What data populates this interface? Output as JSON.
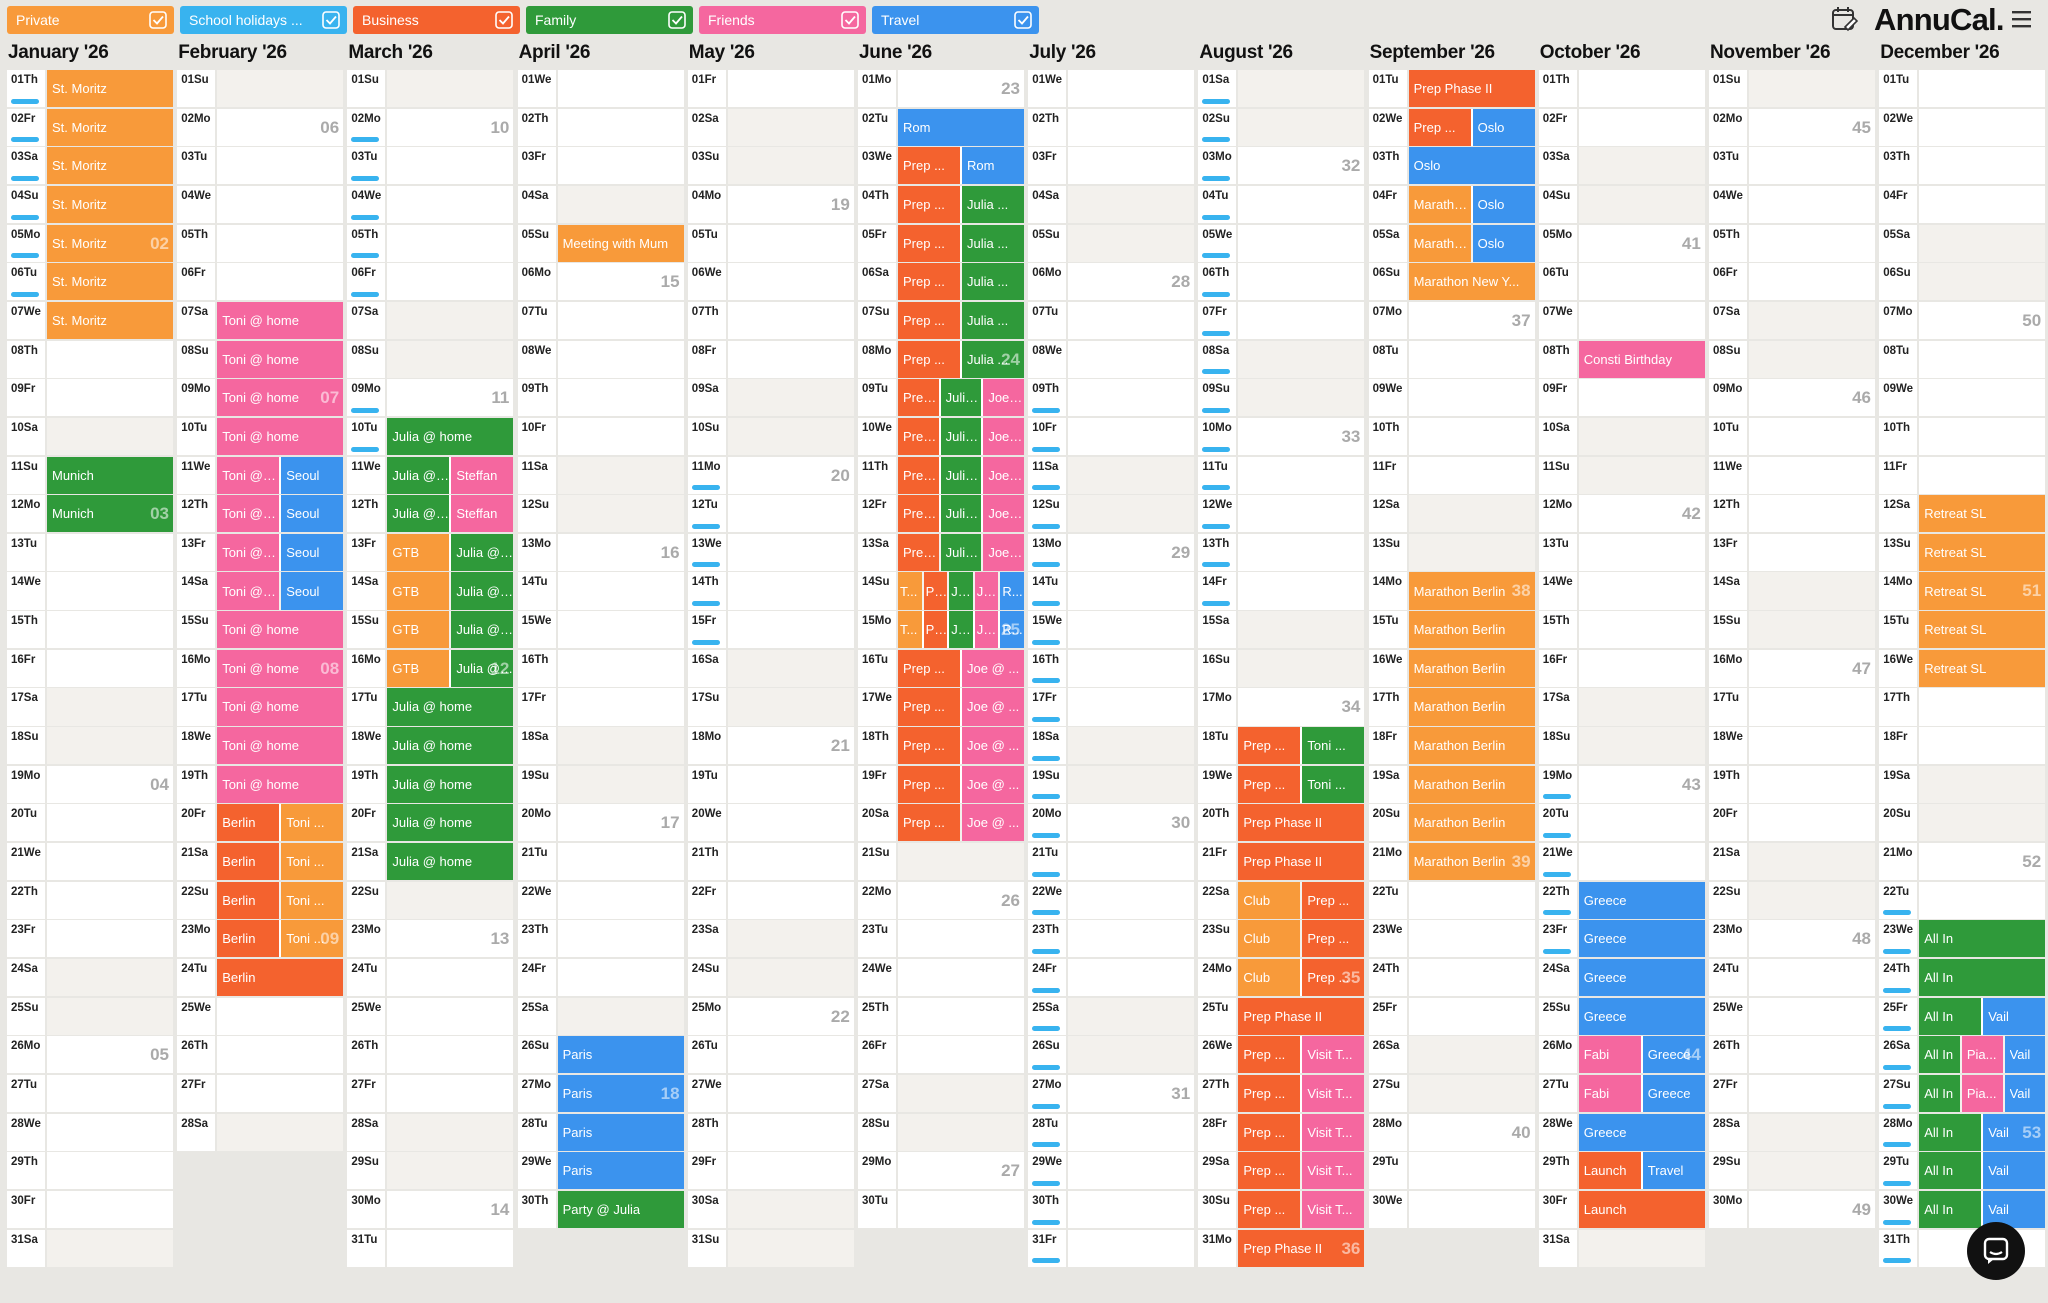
{
  "brand": "AnnuCal.",
  "filters": [
    {
      "label": "Private",
      "color": "#f89a3a"
    },
    {
      "label": "School holidays ...",
      "color": "#38b3ef"
    },
    {
      "label": "Business",
      "color": "#f4622e"
    },
    {
      "label": "Family",
      "color": "#2f9a3a"
    },
    {
      "label": "Friends",
      "color": "#f5679f"
    },
    {
      "label": "Travel",
      "color": "#3b93ee"
    }
  ],
  "months": [
    {
      "title": "January '26",
      "days": [
        "01Th",
        "02Fr",
        "03Sa",
        "04Su",
        "05Mo",
        "06Tu",
        "07We",
        "08Th",
        "09Fr",
        "10Sa",
        "11Su",
        "12Mo",
        "13Tu",
        "14We",
        "15Th",
        "16Fr",
        "17Sa",
        "18Su",
        "19Mo",
        "20Tu",
        "21We",
        "22Th",
        "23Fr",
        "24Sa",
        "25Su",
        "26Mo",
        "27Tu",
        "28We",
        "29Th",
        "30Fr",
        "31Sa"
      ],
      "weeks": [
        "02",
        "03",
        "04",
        "05"
      ],
      "school_holidays": [
        [
          1,
          6
        ]
      ],
      "events": [
        {
          "label": "St. Moritz",
          "filter": 0,
          "from": 1,
          "to": 7
        },
        {
          "label": "Munich",
          "filter": 3,
          "from": 11,
          "to": 12
        }
      ]
    },
    {
      "title": "February '26",
      "days": [
        "01Su",
        "02Mo",
        "03Tu",
        "04We",
        "05Th",
        "06Fr",
        "07Sa",
        "08Su",
        "09Mo",
        "10Tu",
        "11We",
        "12Th",
        "13Fr",
        "14Sa",
        "15Su",
        "16Mo",
        "17Tu",
        "18We",
        "19Th",
        "20Fr",
        "21Sa",
        "22Su",
        "23Mo",
        "24Tu",
        "25We",
        "26Th",
        "27Fr",
        "28Sa"
      ],
      "weeks": [
        "06",
        "07",
        "08",
        "09"
      ],
      "school_holidays": [],
      "events": [
        {
          "label": "Toni @ home",
          "filter": 4,
          "from": 7,
          "to": 19
        },
        {
          "label": "Seoul",
          "filter": 5,
          "from": 11,
          "to": 14
        },
        {
          "label": "Berlin",
          "filter": 2,
          "from": 20,
          "to": 24
        },
        {
          "label": "Toni ...",
          "filter": 0,
          "from": 20,
          "to": 23
        }
      ]
    },
    {
      "title": "March '26",
      "days": [
        "01Su",
        "02Mo",
        "03Tu",
        "04We",
        "05Th",
        "06Fr",
        "07Sa",
        "08Su",
        "09Mo",
        "10Tu",
        "11We",
        "12Th",
        "13Fr",
        "14Sa",
        "15Su",
        "16Mo",
        "17Tu",
        "18We",
        "19Th",
        "20Fr",
        "21Sa",
        "22Su",
        "23Mo",
        "24Tu",
        "25We",
        "26Th",
        "27Fr",
        "28Sa",
        "29Su",
        "30Mo",
        "31Tu"
      ],
      "weeks": [
        "10",
        "11",
        "12",
        "13",
        "14"
      ],
      "school_holidays": [
        [
          2,
          6
        ],
        [
          9,
          10
        ]
      ],
      "events": [
        {
          "label": "GTB",
          "filter": 0,
          "from": 13,
          "to": 16
        },
        {
          "label": "Julia @ home",
          "filter": 3,
          "from": 10,
          "to": 21
        },
        {
          "label": "Steffan",
          "filter": 4,
          "from": 11,
          "to": 12
        }
      ]
    },
    {
      "title": "April '26",
      "days": [
        "01We",
        "02Th",
        "03Fr",
        "04Sa",
        "05Su",
        "06Mo",
        "07Tu",
        "08We",
        "09Th",
        "10Fr",
        "11Sa",
        "12Su",
        "13Mo",
        "14Tu",
        "15We",
        "16Th",
        "17Fr",
        "18Sa",
        "19Su",
        "20Mo",
        "21Tu",
        "22We",
        "23Th",
        "24Fr",
        "25Sa",
        "26Su",
        "27Mo",
        "28Tu",
        "29We",
        "30Th"
      ],
      "weeks": [
        "15",
        "16",
        "17",
        "18"
      ],
      "school_holidays": [],
      "events": [
        {
          "label": "Meeting with Mum",
          "filter": 0,
          "from": 5,
          "to": 5
        },
        {
          "label": "Paris",
          "filter": 5,
          "from": 26,
          "to": 29
        },
        {
          "label": "Party @ Julia",
          "filter": 3,
          "from": 30,
          "to": 30
        }
      ]
    },
    {
      "title": "May '26",
      "days": [
        "01Fr",
        "02Sa",
        "03Su",
        "04Mo",
        "05Tu",
        "06We",
        "07Th",
        "08Fr",
        "09Sa",
        "10Su",
        "11Mo",
        "12Tu",
        "13We",
        "14Th",
        "15Fr",
        "16Sa",
        "17Su",
        "18Mo",
        "19Tu",
        "20We",
        "21Th",
        "22Fr",
        "23Sa",
        "24Su",
        "25Mo",
        "26Tu",
        "27We",
        "28Th",
        "29Fr",
        "30Sa",
        "31Su"
      ],
      "weeks": [
        "19",
        "20",
        "21",
        "22"
      ],
      "school_holidays": [
        [
          11,
          15
        ]
      ],
      "events": []
    },
    {
      "title": "June '26",
      "days": [
        "01Mo",
        "02Tu",
        "03We",
        "04Th",
        "05Fr",
        "06Sa",
        "07Su",
        "08Mo",
        "09Tu",
        "10We",
        "11Th",
        "12Fr",
        "13Sa",
        "14Su",
        "15Mo",
        "16Tu",
        "17We",
        "18Th",
        "19Fr",
        "20Sa",
        "21Su",
        "22Mo",
        "23Tu",
        "24We",
        "25Th",
        "26Fr",
        "27Sa",
        "28Su",
        "29Mo",
        "30Tu"
      ],
      "weeks": [
        "23",
        "24",
        "25",
        "26",
        "27"
      ],
      "school_holidays": [],
      "events": [
        {
          "label": "T...",
          "filter": 0,
          "from": 14,
          "to": 15
        },
        {
          "label": "Prep ...",
          "filter": 2,
          "from": 3,
          "to": 20
        },
        {
          "label": "Julia ...",
          "filter": 3,
          "from": 4,
          "to": 15
        },
        {
          "label": "Joe @ ...",
          "filter": 4,
          "from": 9,
          "to": 20
        },
        {
          "label": "R...",
          "filter": 5,
          "from": 14,
          "to": 15
        },
        {
          "label": "Rom",
          "filter": 5,
          "from": 2,
          "to": 3
        }
      ]
    },
    {
      "title": "July '26",
      "days": [
        "01We",
        "02Th",
        "03Fr",
        "04Sa",
        "05Su",
        "06Mo",
        "07Tu",
        "08We",
        "09Th",
        "10Fr",
        "11Sa",
        "12Su",
        "13Mo",
        "14Tu",
        "15We",
        "16Th",
        "17Fr",
        "18Sa",
        "19Su",
        "20Mo",
        "21Tu",
        "22We",
        "23Th",
        "24Fr",
        "25Sa",
        "26Su",
        "27Mo",
        "28Tu",
        "29We",
        "30Th",
        "31Fr"
      ],
      "weeks": [
        "28",
        "29",
        "30",
        "31"
      ],
      "school_holidays": [
        [
          9,
          31
        ]
      ],
      "events": []
    },
    {
      "title": "August '26",
      "days": [
        "01Sa",
        "02Su",
        "03Mo",
        "04Tu",
        "05We",
        "06Th",
        "07Fr",
        "08Sa",
        "09Su",
        "10Mo",
        "11Tu",
        "12We",
        "13Th",
        "14Fr",
        "15Sa",
        "16Su",
        "17Mo",
        "18Tu",
        "19We",
        "20Th",
        "21Fr",
        "22Sa",
        "23Su",
        "24Mo",
        "25Tu",
        "26We",
        "27Th",
        "28Fr",
        "29Sa",
        "30Su",
        "31Mo"
      ],
      "weeks": [
        "32",
        "33",
        "34",
        "35",
        "36"
      ],
      "school_holidays": [
        [
          1,
          14
        ]
      ],
      "events": [
        {
          "label": "Prep ...",
          "filter": 2,
          "from": 18,
          "to": 19
        },
        {
          "label": "Toni ...",
          "filter": 3,
          "from": 18,
          "to": 19
        },
        {
          "label": "Prep Phase II",
          "filter": 2,
          "from": 20,
          "to": 21
        },
        {
          "label": "Club",
          "filter": 0,
          "from": 22,
          "to": 24
        },
        {
          "label": "Prep ...",
          "filter": 2,
          "from": 22,
          "to": 24
        },
        {
          "label": "Prep Phase II",
          "filter": 2,
          "from": 25,
          "to": 25
        },
        {
          "label": "Prep ...",
          "filter": 2,
          "from": 26,
          "to": 30
        },
        {
          "label": "Visit T...",
          "filter": 4,
          "from": 26,
          "to": 30
        },
        {
          "label": "Prep Phase II",
          "filter": 2,
          "from": 31,
          "to": 31
        }
      ]
    },
    {
      "title": "September '26",
      "days": [
        "01Tu",
        "02We",
        "03Th",
        "04Fr",
        "05Sa",
        "06Su",
        "07Mo",
        "08Tu",
        "09We",
        "10Th",
        "11Fr",
        "12Sa",
        "13Su",
        "14Mo",
        "15Tu",
        "16We",
        "17Th",
        "18Fr",
        "19Sa",
        "20Su",
        "21Mo",
        "22Tu",
        "23We",
        "24Th",
        "25Fr",
        "26Sa",
        "27Su",
        "28Mo",
        "29Tu",
        "30We"
      ],
      "weeks": [
        "37",
        "38",
        "39",
        "40"
      ],
      "school_holidays": [],
      "events": [
        {
          "label": "Prep Phase II",
          "filter": 2,
          "from": 1,
          "to": 1
        },
        {
          "label": "Prep ...",
          "filter": 2,
          "from": 2,
          "to": 2
        },
        {
          "label": "Marathon New Y...",
          "filter": 0,
          "from": 4,
          "to": 6
        },
        {
          "label": "Oslo",
          "filter": 5,
          "from": 2,
          "to": 5
        },
        {
          "label": "Marathon Berlin",
          "filter": 0,
          "from": 14,
          "to": 21
        }
      ]
    },
    {
      "title": "October '26",
      "days": [
        "01Th",
        "02Fr",
        "03Sa",
        "04Su",
        "05Mo",
        "06Tu",
        "07We",
        "08Th",
        "09Fr",
        "10Sa",
        "11Su",
        "12Mo",
        "13Tu",
        "14We",
        "15Th",
        "16Fr",
        "17Sa",
        "18Su",
        "19Mo",
        "20Tu",
        "21We",
        "22Th",
        "23Fr",
        "24Sa",
        "25Su",
        "26Mo",
        "27Tu",
        "28We",
        "29Th",
        "30Fr",
        "31Sa"
      ],
      "weeks": [
        "41",
        "42",
        "43",
        "44"
      ],
      "school_holidays": [
        [
          19,
          23
        ]
      ],
      "events": [
        {
          "label": "Consti Birthday",
          "filter": 4,
          "from": 8,
          "to": 8
        },
        {
          "label": "Fabi",
          "filter": 4,
          "from": 26,
          "to": 27
        },
        {
          "label": "Greece",
          "filter": 5,
          "from": 22,
          "to": 28
        },
        {
          "label": "Launch",
          "filter": 2,
          "from": 29,
          "to": 30
        },
        {
          "label": "Travel",
          "filter": 5,
          "from": 29,
          "to": 29
        }
      ]
    },
    {
      "title": "November '26",
      "days": [
        "01Su",
        "02Mo",
        "03Tu",
        "04We",
        "05Th",
        "06Fr",
        "07Sa",
        "08Su",
        "09Mo",
        "10Tu",
        "11We",
        "12Th",
        "13Fr",
        "14Sa",
        "15Su",
        "16Mo",
        "17Tu",
        "18We",
        "19Th",
        "20Fr",
        "21Sa",
        "22Su",
        "23Mo",
        "24Tu",
        "25We",
        "26Th",
        "27Fr",
        "28Sa",
        "29Su",
        "30Mo"
      ],
      "weeks": [
        "45",
        "46",
        "47",
        "48",
        "49"
      ],
      "school_holidays": [],
      "events": []
    },
    {
      "title": "December '26",
      "days": [
        "01Tu",
        "02We",
        "03Th",
        "04Fr",
        "05Sa",
        "06Su",
        "07Mo",
        "08Tu",
        "09We",
        "10Th",
        "11Fr",
        "12Sa",
        "13Su",
        "14Mo",
        "15Tu",
        "16We",
        "17Th",
        "18Fr",
        "19Sa",
        "20Su",
        "21Mo",
        "22Tu",
        "23We",
        "24Th",
        "25Fr",
        "26Sa",
        "27Su",
        "28Mo",
        "29Tu",
        "30We",
        "31Th"
      ],
      "weeks": [
        "50",
        "51",
        "52",
        "53"
      ],
      "school_holidays": [
        [
          22,
          31
        ]
      ],
      "events": [
        {
          "label": "Retreat SL",
          "filter": 0,
          "from": 12,
          "to": 16
        },
        {
          "label": "All In",
          "filter": 3,
          "from": 23,
          "to": 30
        },
        {
          "label": "Pia...",
          "filter": 4,
          "from": 26,
          "to": 27
        },
        {
          "label": "Vail",
          "filter": 5,
          "from": 25,
          "to": 30
        }
      ]
    }
  ]
}
